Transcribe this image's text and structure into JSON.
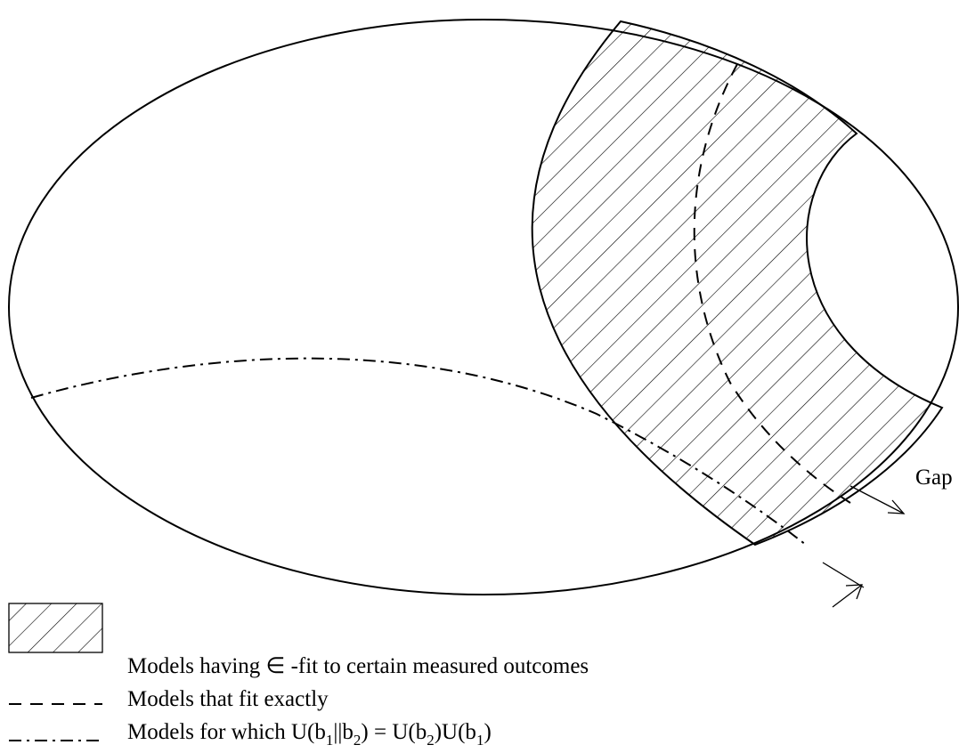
{
  "diagram": {
    "gap_label": "Gap",
    "legend": [
      {
        "label": "Models having ∈ -fit to certain measured outcomes"
      },
      {
        "label": "Models that fit exactly"
      },
      {
        "label_parts": [
          "Models for which U(b",
          "1",
          "||b",
          "2",
          ") = U(b",
          "2",
          ")U(b",
          "1",
          ")"
        ]
      }
    ]
  }
}
